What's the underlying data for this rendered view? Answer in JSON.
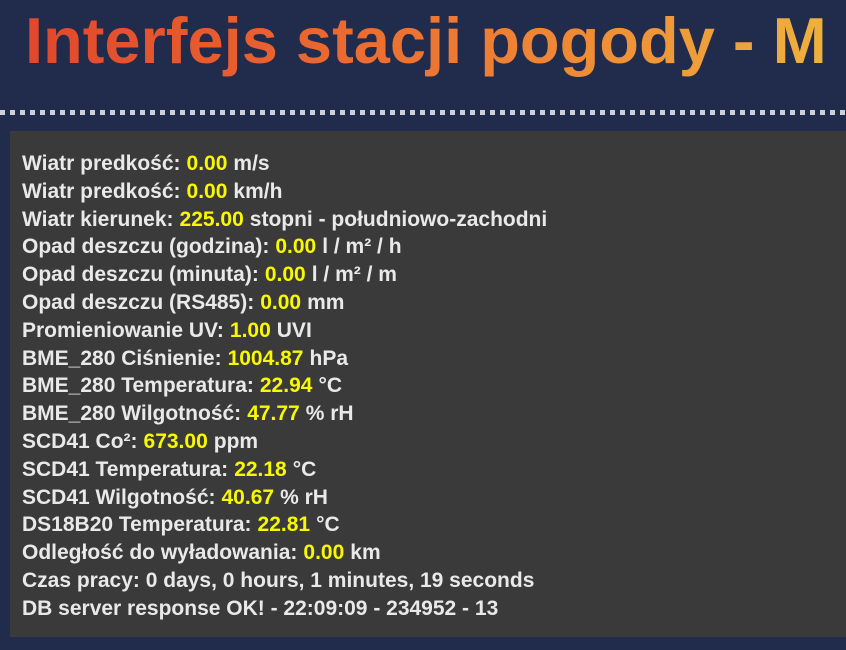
{
  "page": {
    "title": "Interfejs stacji pogody - M"
  },
  "theme": {
    "background_color": "#212c4d",
    "panel_background": "#3a3a3a",
    "label_color": "#e9e9e9",
    "value_color": "#f8f800",
    "title_gradient_start": "#e0452c",
    "title_gradient_mid": "#ef8a36",
    "title_gradient_end": "#eeb43e",
    "separator_dot_color": "#ccd0d7"
  },
  "readings": [
    {
      "label": "Wiatr predkość:",
      "value": "0.00",
      "unit": "m/s"
    },
    {
      "label": "Wiatr predkość:",
      "value": "0.00",
      "unit": "km/h"
    },
    {
      "label": "Wiatr kierunek:",
      "value": "225.00",
      "unit": "stopni - południowo-zachodni"
    },
    {
      "label": "Opad deszczu (godzina):",
      "value": "0.00",
      "unit": "l / m² / h"
    },
    {
      "label": "Opad deszczu (minuta):",
      "value": "0.00",
      "unit": "l / m² / m"
    },
    {
      "label": "Opad deszczu (RS485):",
      "value": "0.00",
      "unit": "mm"
    },
    {
      "label": "Promieniowanie UV:",
      "value": "1.00",
      "unit": "UVI"
    },
    {
      "label": "BME_280 Ciśnienie:",
      "value": "1004.87",
      "unit": "hPa"
    },
    {
      "label": "BME_280 Temperatura:",
      "value": "22.94",
      "unit": "°C"
    },
    {
      "label": "BME_280 Wilgotność:",
      "value": "47.77",
      "unit": "% rH"
    },
    {
      "label": "SCD41 Co²:",
      "value": "673.00",
      "unit": "ppm"
    },
    {
      "label": "SCD41 Temperatura:",
      "value": "22.18",
      "unit": "°C"
    },
    {
      "label": "SCD41 Wilgotność:",
      "value": "40.67",
      "unit": "% rH"
    },
    {
      "label": "DS18B20 Temperatura:",
      "value": "22.81",
      "unit": "°C"
    },
    {
      "label": "Odległość do wyładowania:",
      "value": "0.00",
      "unit": "km"
    },
    {
      "label": "Czas pracy: 0 days, 0 hours, 1 minutes, 19 seconds",
      "value": "",
      "unit": ""
    },
    {
      "label": "DB server response OK! - 22:09:09 - 234952 - 13",
      "value": "",
      "unit": ""
    }
  ]
}
